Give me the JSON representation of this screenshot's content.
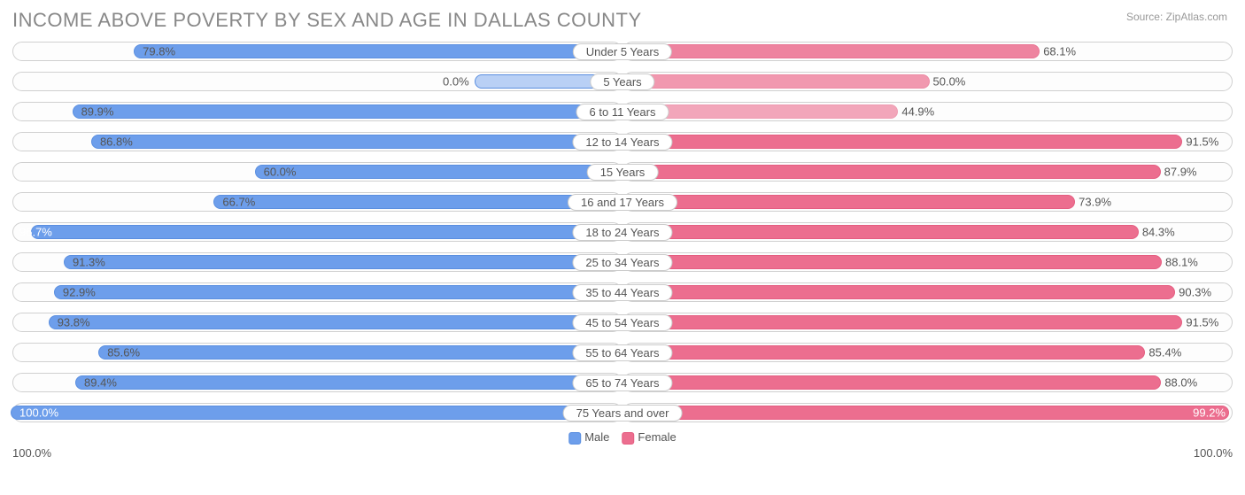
{
  "chart": {
    "type": "diverging-bar",
    "title": "INCOME ABOVE POVERTY BY SEX AND AGE IN DALLAS COUNTY",
    "source": "Source: ZipAtlas.com",
    "axis_max_label": "100.0%",
    "axis_max": 100.0,
    "legend": {
      "male": "Male",
      "female": "Female"
    },
    "colors": {
      "male_fill": "#6d9eeb",
      "male_border": "#5b8fe0",
      "female_fill": "#ec6e8f",
      "female_border": "#e55d81",
      "track_border": "#d0d0d0",
      "text": "#555555",
      "title": "#888888",
      "background": "#ffffff"
    },
    "label_fontsize": 13,
    "title_fontsize": 22,
    "rows": [
      {
        "cat": "Under 5 Years",
        "male": 79.8,
        "female": 68.1,
        "female_opacity": 0.85
      },
      {
        "cat": "5 Years",
        "male": 0.0,
        "female": 50.0,
        "male_placeholder": true,
        "female_opacity": 0.7
      },
      {
        "cat": "6 to 11 Years",
        "male": 89.9,
        "female": 44.9,
        "female_opacity": 0.6
      },
      {
        "cat": "12 to 14 Years",
        "male": 86.8,
        "female": 91.5
      },
      {
        "cat": "15 Years",
        "male": 60.0,
        "female": 87.9
      },
      {
        "cat": "16 and 17 Years",
        "male": 66.7,
        "female": 73.9
      },
      {
        "cat": "18 to 24 Years",
        "male": 96.7,
        "female": 84.3
      },
      {
        "cat": "25 to 34 Years",
        "male": 91.3,
        "female": 88.1
      },
      {
        "cat": "35 to 44 Years",
        "male": 92.9,
        "female": 90.3
      },
      {
        "cat": "45 to 54 Years",
        "male": 93.8,
        "female": 91.5
      },
      {
        "cat": "55 to 64 Years",
        "male": 85.6,
        "female": 85.4
      },
      {
        "cat": "65 to 74 Years",
        "male": 89.4,
        "female": 88.0
      },
      {
        "cat": "75 Years and over",
        "male": 100.0,
        "female": 99.2
      }
    ]
  }
}
